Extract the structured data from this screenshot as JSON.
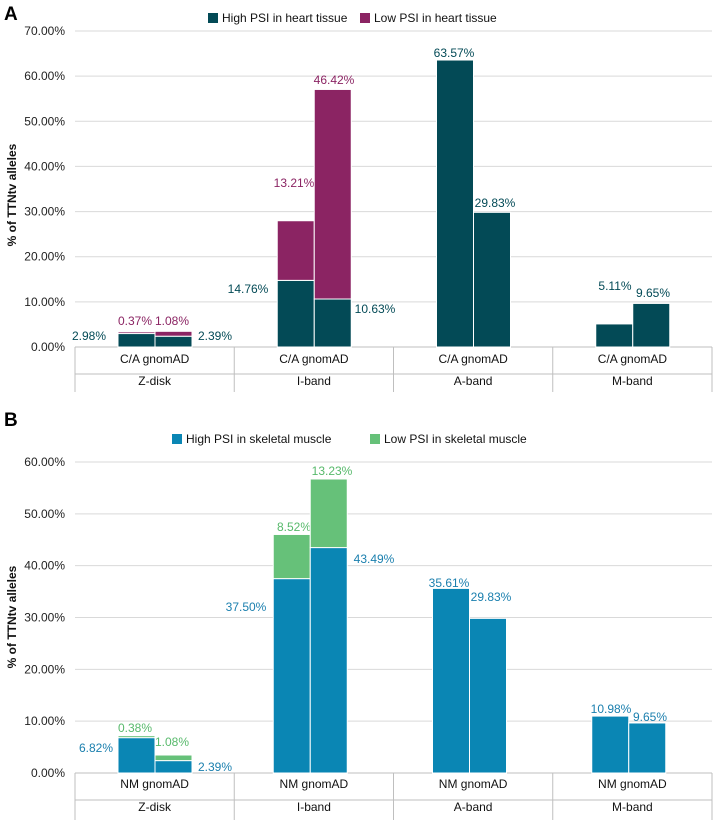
{
  "panels": [
    {
      "label": "A"
    },
    {
      "label": "B"
    }
  ],
  "chart_data": [
    {
      "type": "bar",
      "stacked": true,
      "panel": "A",
      "title": "",
      "ylabel": "% of TTNtv alleles",
      "ylim": [
        0,
        70
      ],
      "yticks": [
        "0.00%",
        "10.00%",
        "20.00%",
        "30.00%",
        "40.00%",
        "50.00%",
        "60.00%",
        "70.00%"
      ],
      "yticks_values": [
        0,
        10,
        20,
        30,
        40,
        50,
        60,
        70
      ],
      "legend_position": "top",
      "groups": [
        "Z-disk",
        "I-band",
        "A-band",
        "M-band"
      ],
      "group_tick_label": "C/A gnomAD",
      "bars_per_group": [
        "C/A",
        "gnomAD"
      ],
      "colors": {
        "high": "#034a56",
        "low": "#8b2463",
        "high_label": "#034a56",
        "low_label": "#8b2463"
      },
      "series": [
        {
          "name": "High PSI in heart tissue",
          "key": "high",
          "values": [
            [
              2.98,
              2.39
            ],
            [
              14.76,
              10.63
            ],
            [
              63.57,
              29.83
            ],
            [
              5.11,
              9.65
            ]
          ]
        },
        {
          "name": "Low PSI in heart tissue",
          "key": "low",
          "values": [
            [
              0.37,
              1.08
            ],
            [
              13.21,
              46.42
            ],
            [
              0,
              0
            ],
            [
              0,
              0
            ]
          ]
        }
      ],
      "data_labels": [
        [
          {
            "high": "2.98%",
            "low": "0.37%"
          },
          {
            "high": "2.39%",
            "low": "1.08%"
          }
        ],
        [
          {
            "high": "14.76%",
            "low": "13.21%"
          },
          {
            "high": "10.63%",
            "low": "46.42%"
          }
        ],
        [
          {
            "high": "63.57%",
            "low": ""
          },
          {
            "high": "29.83%",
            "low": ""
          }
        ],
        [
          {
            "high": "5.11%",
            "low": ""
          },
          {
            "high": "9.65%",
            "low": ""
          }
        ]
      ]
    },
    {
      "type": "bar",
      "stacked": true,
      "panel": "B",
      "title": "",
      "ylabel": "% of TTNtv alleles",
      "ylim": [
        0,
        60
      ],
      "yticks": [
        "0.00%",
        "10.00%",
        "20.00%",
        "30.00%",
        "40.00%",
        "50.00%",
        "60.00%"
      ],
      "yticks_values": [
        0,
        10,
        20,
        30,
        40,
        50,
        60
      ],
      "legend_position": "top",
      "groups": [
        "Z-disk",
        "I-band",
        "A-band",
        "M-band"
      ],
      "group_tick_label": "NM gnomAD",
      "bars_per_group": [
        "NM",
        "gnomAD"
      ],
      "colors": {
        "high": "#0a86b4",
        "low": "#66c179",
        "high_label": "#1a7fae",
        "low_label": "#57b96b"
      },
      "series": [
        {
          "name": "High PSI in skeletal muscle",
          "key": "high",
          "values": [
            [
              6.82,
              2.39
            ],
            [
              37.5,
              43.49
            ],
            [
              35.61,
              29.83
            ],
            [
              10.98,
              9.65
            ]
          ]
        },
        {
          "name": "Low PSI in skeletal muscle",
          "key": "low",
          "values": [
            [
              0.38,
              1.08
            ],
            [
              8.52,
              13.23
            ],
            [
              0,
              0
            ],
            [
              0,
              0
            ]
          ]
        }
      ],
      "data_labels": [
        [
          {
            "high": "6.82%",
            "low": "0.38%"
          },
          {
            "high": "2.39%",
            "low": "1.08%"
          }
        ],
        [
          {
            "high": "37.50%",
            "low": "8.52%"
          },
          {
            "high": "43.49%",
            "low": "13.23%"
          }
        ],
        [
          {
            "high": "35.61%",
            "low": ""
          },
          {
            "high": "29.83%",
            "low": ""
          }
        ],
        [
          {
            "high": "10.98%",
            "low": ""
          },
          {
            "high": "9.65%",
            "low": ""
          }
        ]
      ]
    }
  ]
}
